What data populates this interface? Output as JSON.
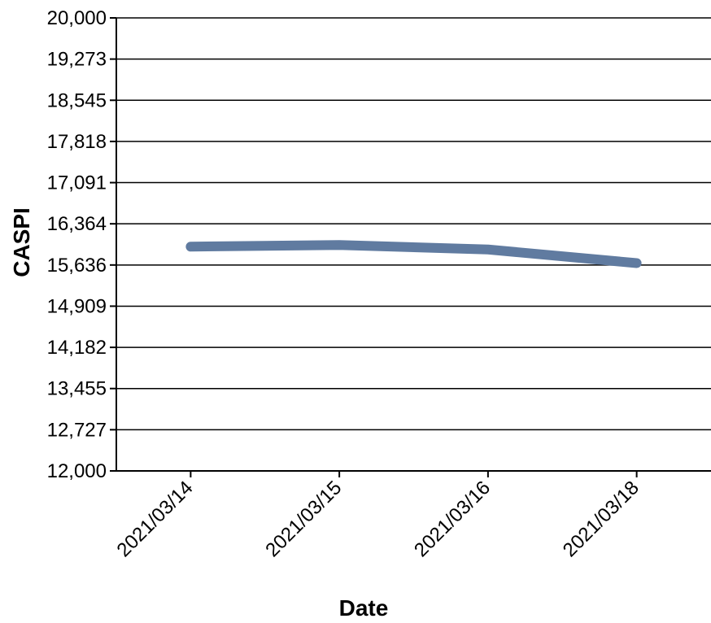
{
  "chart_data": {
    "type": "line",
    "title": "",
    "xlabel": "Date",
    "ylabel": "CASPI",
    "categories": [
      "2021/03/14",
      "2021/03/15",
      "2021/03/16",
      "2021/03/18"
    ],
    "series": [
      {
        "values": [
          15960,
          15990,
          15910,
          15670
        ],
        "color": "#607ba0"
      }
    ],
    "ylim": [
      12000,
      20000
    ],
    "yticks": [
      "12,000",
      "12,727",
      "13,455",
      "14,182",
      "14,909",
      "15,636",
      "16,364",
      "17,091",
      "17,818",
      "18,545",
      "19,273",
      "20,000"
    ],
    "grid": true,
    "legend": "none"
  }
}
